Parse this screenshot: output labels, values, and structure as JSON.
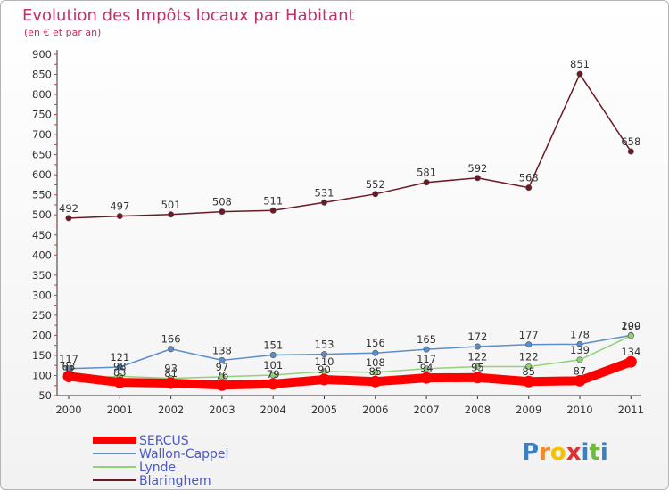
{
  "chart_data": {
    "type": "line",
    "title": "Evolution des Impôts locaux par Habitant",
    "subtitle": "(en € et par an)",
    "xlabel": "",
    "ylabel": "",
    "x": [
      "2000",
      "2001",
      "2002",
      "2003",
      "2004",
      "2005",
      "2006",
      "2007",
      "2008",
      "2009",
      "2010",
      "2011"
    ],
    "yticks": [
      "50",
      "100",
      "150",
      "200",
      "250",
      "300",
      "350",
      "400",
      "450",
      "500",
      "550",
      "600",
      "650",
      "700",
      "750",
      "800",
      "850",
      "900"
    ],
    "ylim": [
      50,
      900
    ],
    "grid": false,
    "legend_position": "bottom-left",
    "series": [
      {
        "name": "Blaringhem",
        "color": "#6b1a24",
        "values": [
          492,
          497,
          501,
          508,
          511,
          531,
          552,
          581,
          592,
          568,
          851,
          658
        ],
        "labels": [
          "492",
          "497",
          "501",
          "508",
          "511",
          "531",
          "552",
          "581",
          "592",
          "568",
          "851",
          "658"
        ]
      },
      {
        "name": "Wallon-Cappel",
        "color": "#5b8fc9",
        "values": [
          117,
          121,
          166,
          138,
          151,
          153,
          156,
          165,
          172,
          177,
          178,
          200
        ],
        "labels": [
          "117",
          "121",
          "166",
          "138",
          "151",
          "153",
          "156",
          "165",
          "172",
          "177",
          "178",
          "200"
        ]
      },
      {
        "name": "Lynde",
        "color": "#8fd27a",
        "values": [
          91,
          98,
          93,
          97,
          101,
          110,
          108,
          117,
          122,
          122,
          139,
          199
        ],
        "labels": [
          "91",
          "98",
          "93",
          "97",
          "101",
          "110",
          "108",
          "117",
          "122",
          "122",
          "139",
          "199"
        ]
      },
      {
        "name": "SERCUS",
        "color": "#ff0000",
        "values": [
          98,
          83,
          81,
          76,
          79,
          90,
          85,
          94,
          95,
          85,
          87,
          134
        ],
        "labels": [
          "98",
          "83",
          "81",
          "76",
          "79",
          "90",
          "85",
          "94",
          "95",
          "85",
          "87",
          "134"
        ]
      }
    ],
    "legend": [
      "SERCUS",
      "Wallon-Cappel",
      "Lynde",
      "Blaringhem"
    ]
  },
  "logo": {
    "letters": [
      "P",
      "r",
      "o",
      "x",
      "i",
      "t",
      "i"
    ],
    "colors": [
      "#3a7fc4",
      "#f28c28",
      "#f2c200",
      "#e03030",
      "#3a7fc4",
      "#6cbb3c",
      "#3a7fc4"
    ]
  }
}
